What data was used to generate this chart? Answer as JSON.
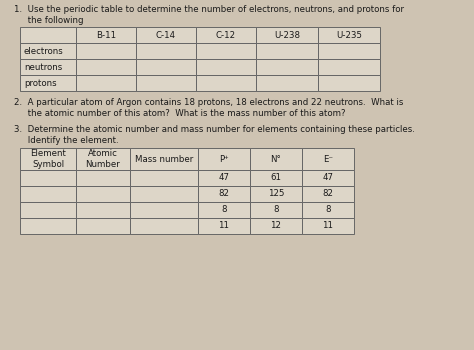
{
  "bg_color": "#cec3b2",
  "cell_color": "#ddd6c8",
  "text_color": "#1a1a1a",
  "line_color": "#666666",
  "title1": "1.  Use the periodic table to determine the number of electrons, neutrons, and protons for",
  "title1b": "     the following",
  "q2_line1": "2.  A particular atom of Argon contains 18 protons, 18 electrons and 22 neutrons.  What is",
  "q2_line2": "     the atomic number of this atom?  What is the mass number of this atom?",
  "q3_line1": "3.  Determine the atomic number and mass number for elements containing these particles.",
  "q3_line2": "     Identify the element.",
  "table1_headers": [
    "",
    "B-11",
    "C-14",
    "C-12",
    "U-238",
    "U-235"
  ],
  "table1_rows": [
    "electrons",
    "neutrons",
    "protons"
  ],
  "table2_headers": [
    "Element\nSymbol",
    "Atomic\nNumber",
    "Mass number",
    "P⁺",
    "N°",
    "E⁻"
  ],
  "table2_data": [
    [
      "",
      "",
      "",
      "47",
      "61",
      "47"
    ],
    [
      "",
      "",
      "",
      "82",
      "125",
      "82"
    ],
    [
      "",
      "",
      "",
      "8",
      "8",
      "8"
    ],
    [
      "",
      "",
      "",
      "11",
      "12",
      "11"
    ]
  ],
  "fs": 6.2,
  "dpi": 100,
  "fig_w": 4.74,
  "fig_h": 3.5
}
